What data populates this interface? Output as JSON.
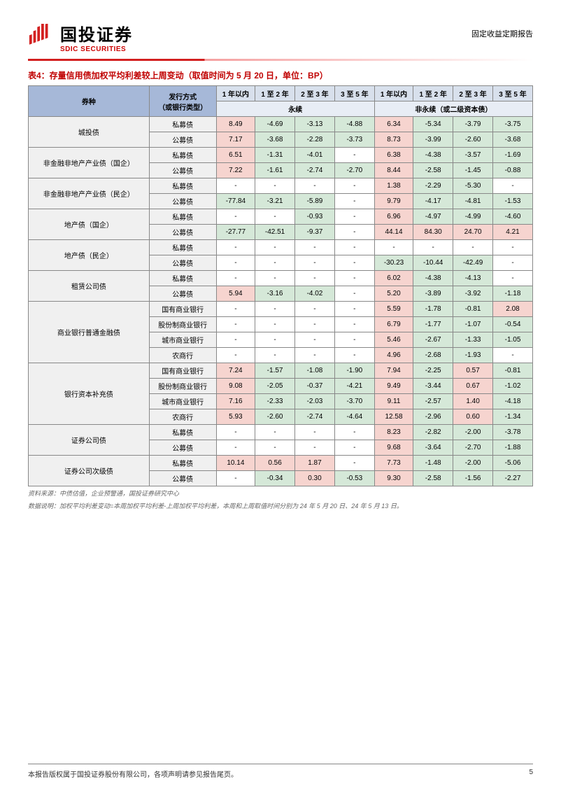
{
  "header": {
    "company_cn": "国投证券",
    "company_en": "SDIC SECURITIES",
    "report_type": "固定收益定期报告",
    "logo_color": "#d32020"
  },
  "title": "表4：存量信用债加权平均利差较上周变动（取值时间为 5 月 20 日，单位：BP）",
  "table": {
    "col_headers_top": [
      "券种",
      "发行方式\n（或银行类型）"
    ],
    "tenors": [
      "1 年以内",
      "1 至 2 年",
      "2 至 3 年",
      "3 至 5 年"
    ],
    "group1": "永续",
    "group2": "非永续（或二级资本债）",
    "header_bg1": "#a6b8d8",
    "header_bg2": "#d8e0ec",
    "header_bg3": "#e8edf5",
    "pos_bg": "#f6d4cf",
    "neg_bg": "#d5e8d8",
    "rows": [
      {
        "cat": "城投债",
        "sub": "私募债",
        "v": [
          "8.49",
          "-4.69",
          "-3.13",
          "-4.88",
          "6.34",
          "-5.34",
          "-3.79",
          "-3.75"
        ]
      },
      {
        "cat": "城投债",
        "sub": "公募债",
        "v": [
          "7.17",
          "-3.68",
          "-2.28",
          "-3.73",
          "8.73",
          "-3.99",
          "-2.60",
          "-3.68"
        ]
      },
      {
        "cat": "非金融非地产产业债（国企）",
        "sub": "私募债",
        "v": [
          "6.51",
          "-1.31",
          "-4.01",
          "-",
          "6.38",
          "-4.38",
          "-3.57",
          "-1.69"
        ]
      },
      {
        "cat": "非金融非地产产业债（国企）",
        "sub": "公募债",
        "v": [
          "7.22",
          "-1.61",
          "-2.74",
          "-2.70",
          "8.44",
          "-2.58",
          "-1.45",
          "-0.88"
        ]
      },
      {
        "cat": "非金融非地产产业债（民企）",
        "sub": "私募债",
        "v": [
          "-",
          "-",
          "-",
          "-",
          "1.38",
          "-2.29",
          "-5.30",
          "-"
        ]
      },
      {
        "cat": "非金融非地产产业债（民企）",
        "sub": "公募债",
        "v": [
          "-77.84",
          "-3.21",
          "-5.89",
          "-",
          "9.79",
          "-4.17",
          "-4.81",
          "-1.53"
        ]
      },
      {
        "cat": "地产债（国企）",
        "sub": "私募债",
        "v": [
          "-",
          "-",
          "-0.93",
          "-",
          "6.96",
          "-4.97",
          "-4.99",
          "-4.60"
        ]
      },
      {
        "cat": "地产债（国企）",
        "sub": "公募债",
        "v": [
          "-27.77",
          "-42.51",
          "-9.37",
          "-",
          "44.14",
          "84.30",
          "24.70",
          "4.21"
        ]
      },
      {
        "cat": "地产债（民企）",
        "sub": "私募债",
        "v": [
          "-",
          "-",
          "-",
          "-",
          "-",
          "-",
          "-",
          "-"
        ]
      },
      {
        "cat": "地产债（民企）",
        "sub": "公募债",
        "v": [
          "-",
          "-",
          "-",
          "-",
          "-30.23",
          "-10.44",
          "-42.49",
          "-"
        ]
      },
      {
        "cat": "租赁公司债",
        "sub": "私募债",
        "v": [
          "-",
          "-",
          "-",
          "-",
          "6.02",
          "-4.38",
          "-4.13",
          "-"
        ]
      },
      {
        "cat": "租赁公司债",
        "sub": "公募债",
        "v": [
          "5.94",
          "-3.16",
          "-4.02",
          "-",
          "5.20",
          "-3.89",
          "-3.92",
          "-1.18"
        ]
      },
      {
        "cat": "商业银行普通金融债",
        "sub": "国有商业银行",
        "v": [
          "-",
          "-",
          "-",
          "-",
          "5.59",
          "-1.78",
          "-0.81",
          "2.08"
        ]
      },
      {
        "cat": "商业银行普通金融债",
        "sub": "股份制商业银行",
        "v": [
          "-",
          "-",
          "-",
          "-",
          "6.79",
          "-1.77",
          "-1.07",
          "-0.54"
        ]
      },
      {
        "cat": "商业银行普通金融债",
        "sub": "城市商业银行",
        "v": [
          "-",
          "-",
          "-",
          "-",
          "5.46",
          "-2.67",
          "-1.33",
          "-1.05"
        ]
      },
      {
        "cat": "商业银行普通金融债",
        "sub": "农商行",
        "v": [
          "-",
          "-",
          "-",
          "-",
          "4.96",
          "-2.68",
          "-1.93",
          "-"
        ]
      },
      {
        "cat": "银行资本补充债",
        "sub": "国有商业银行",
        "v": [
          "7.24",
          "-1.57",
          "-1.08",
          "-1.90",
          "7.94",
          "-2.25",
          "0.57",
          "-0.81"
        ]
      },
      {
        "cat": "银行资本补充债",
        "sub": "股份制商业银行",
        "v": [
          "9.08",
          "-2.05",
          "-0.37",
          "-4.21",
          "9.49",
          "-3.44",
          "0.67",
          "-1.02"
        ]
      },
      {
        "cat": "银行资本补充债",
        "sub": "城市商业银行",
        "v": [
          "7.16",
          "-2.33",
          "-2.03",
          "-3.70",
          "9.11",
          "-2.57",
          "1.40",
          "-4.18"
        ]
      },
      {
        "cat": "银行资本补充债",
        "sub": "农商行",
        "v": [
          "5.93",
          "-2.60",
          "-2.74",
          "-4.64",
          "12.58",
          "-2.96",
          "0.60",
          "-1.34"
        ]
      },
      {
        "cat": "证券公司债",
        "sub": "私募债",
        "v": [
          "-",
          "-",
          "-",
          "-",
          "8.23",
          "-2.82",
          "-2.00",
          "-3.78"
        ]
      },
      {
        "cat": "证券公司债",
        "sub": "公募债",
        "v": [
          "-",
          "-",
          "-",
          "-",
          "9.68",
          "-3.64",
          "-2.70",
          "-1.88"
        ]
      },
      {
        "cat": "证券公司次级债",
        "sub": "私募债",
        "v": [
          "10.14",
          "0.56",
          "1.87",
          "-",
          "7.73",
          "-1.48",
          "-2.00",
          "-5.06"
        ]
      },
      {
        "cat": "证券公司次级债",
        "sub": "公募债",
        "v": [
          "-",
          "-0.34",
          "0.30",
          "-0.53",
          "9.30",
          "-2.58",
          "-1.56",
          "-2.27"
        ]
      }
    ]
  },
  "footnote1": "资料来源：中债估值，企业预警通，国投证券研究中心",
  "footnote2": "数据说明：加权平均利差变动=本周加权平均利差-上周加权平均利差，本周和上周取值时间分别为 24 年 5 月 20 日、24 年 5 月 13 日。",
  "footer": {
    "left": "本报告版权属于国投证券股份有限公司，各项声明请参见报告尾页。",
    "page": "5"
  }
}
